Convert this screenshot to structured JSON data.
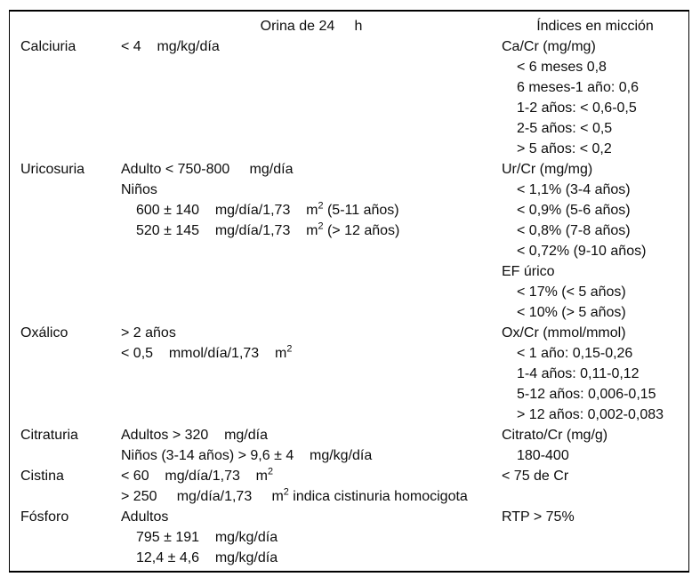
{
  "colors": {
    "background": "#ffffff",
    "text": "#0d0d0d",
    "border": "#000000"
  },
  "table": {
    "headers": {
      "orina": "Orina de 24     h",
      "indices": "Índices en micción"
    },
    "rows": [
      {
        "name": "Calciuria",
        "orina": [
          {
            "text": "< 4    mg/kg/día",
            "indent": 0
          }
        ],
        "indices": [
          {
            "text": "Ca/Cr (mg/mg)",
            "indent": 0
          },
          {
            "text": "< 6 meses 0,8",
            "indent": 1
          },
          {
            "text": "6 meses-1 año: 0,6",
            "indent": 1
          },
          {
            "text": "1-2 años: < 0,6-0,5",
            "indent": 1
          },
          {
            "text": "2-5 años: < 0,5",
            "indent": 1
          },
          {
            "text": "> 5 años: < 0,2",
            "indent": 1
          }
        ]
      },
      {
        "name": "Uricosuria",
        "orina": [
          {
            "text": "Adulto < 750-800     mg/día",
            "indent": 0
          },
          {
            "text": "Niños",
            "indent": 0
          },
          {
            "text": "600 ± 140    mg/día/1,73    m^2 (5-11 años)",
            "indent": 1
          },
          {
            "text": "520 ± 145    mg/día/1,73    m^2 (> 12 años)",
            "indent": 1
          }
        ],
        "indices": [
          {
            "text": "Ur/Cr (mg/mg)",
            "indent": 0
          },
          {
            "text": "< 1,1% (3-4 años)",
            "indent": 1
          },
          {
            "text": "< 0,9% (5-6 años)",
            "indent": 1
          },
          {
            "text": "< 0,8% (7-8 años)",
            "indent": 1
          },
          {
            "text": "< 0,72% (9-10 años)",
            "indent": 1
          },
          {
            "text": "EF úrico",
            "indent": 0
          },
          {
            "text": "< 17% (< 5 años)",
            "indent": 1
          },
          {
            "text": "< 10% (> 5 años)",
            "indent": 1
          }
        ]
      },
      {
        "name": "Oxálico",
        "orina": [
          {
            "text": "> 2 años",
            "indent": 0
          },
          {
            "text": "< 0,5    mmol/día/1,73    m^2",
            "indent": 0
          }
        ],
        "indices": [
          {
            "text": "Ox/Cr (mmol/mmol)",
            "indent": 0
          },
          {
            "text": "< 1 año: 0,15-0,26",
            "indent": 1
          },
          {
            "text": "1-4 años: 0,11-0,12",
            "indent": 1
          },
          {
            "text": "5-12 años: 0,006-0,15",
            "indent": 1
          },
          {
            "text": "> 12 años: 0,002-0,083",
            "indent": 1
          }
        ]
      },
      {
        "name": "Citraturia",
        "orina": [
          {
            "text": "Adultos > 320    mg/día",
            "indent": 0
          },
          {
            "text": "Niños (3-14 años) > 9,6 ± 4    mg/kg/día",
            "indent": 0
          }
        ],
        "indices": [
          {
            "text": "Citrato/Cr (mg/g)",
            "indent": 0
          },
          {
            "text": "180-400",
            "indent": 1
          }
        ]
      },
      {
        "name": "Cistina",
        "orina": [
          {
            "text": "< 60    mg/día/1,73    m^2",
            "indent": 0
          },
          {
            "text": "> 250     mg/día/1,73     m^2 indica cistinuria homocigota",
            "indent": 0
          }
        ],
        "indices": [
          {
            "text": "< 75 de Cr",
            "indent": 0
          }
        ]
      },
      {
        "name": "Fósforo",
        "orina": [
          {
            "text": "Adultos",
            "indent": 0
          },
          {
            "text": "795 ± 191    mg/kg/día",
            "indent": 1
          },
          {
            "text": "12,4 ± 4,6    mg/kg/día",
            "indent": 1
          }
        ],
        "indices": [
          {
            "text": "RTP > 75%",
            "indent": 0
          }
        ]
      }
    ]
  }
}
